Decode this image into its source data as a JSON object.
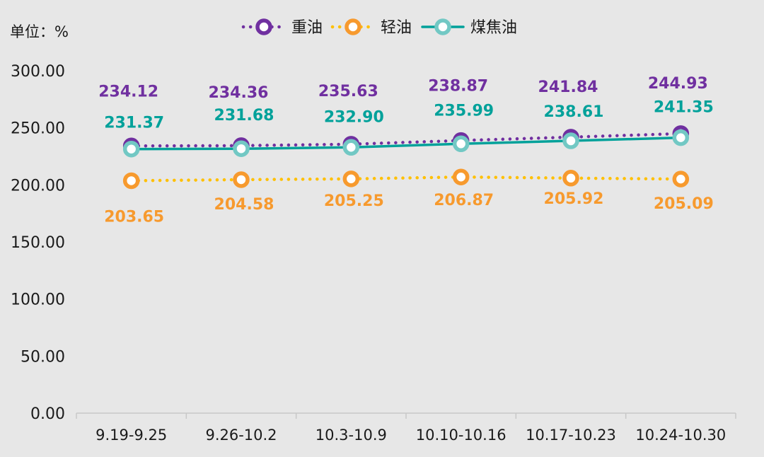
{
  "chart_data": {
    "type": "line",
    "unit_label": "单位：%",
    "categories": [
      "9.19-9.25",
      "9.26-10.2",
      "10.3-10.9",
      "10.10-10.16",
      "10.17-10.23",
      "10.24-10.30"
    ],
    "ylim": [
      0,
      300
    ],
    "yticks": [
      "0.00",
      "50.00",
      "100.00",
      "150.00",
      "200.00",
      "250.00",
      "300.00"
    ],
    "grid": false,
    "legend_position": "top-center",
    "series": [
      {
        "name": "重油",
        "color": "#7030a0",
        "line_style": "dotted",
        "values": [
          234.12,
          234.36,
          235.63,
          238.87,
          241.84,
          244.93
        ],
        "labels": [
          "234.12",
          "234.36",
          "235.63",
          "238.87",
          "241.84",
          "244.93"
        ]
      },
      {
        "name": "轻油",
        "color": "#f79a2e",
        "line_color": "#ffc000",
        "line_style": "dotted",
        "values": [
          203.65,
          204.58,
          205.25,
          206.87,
          205.92,
          205.09
        ],
        "labels": [
          "203.65",
          "204.58",
          "205.25",
          "206.87",
          "205.92",
          "205.09"
        ]
      },
      {
        "name": "煤焦油",
        "color": "#00a19a",
        "marker_color": "#72c8c4",
        "line_style": "solid",
        "values": [
          231.37,
          231.68,
          232.9,
          235.99,
          238.61,
          241.35
        ],
        "labels": [
          "231.37",
          "231.68",
          "232.90",
          "235.99",
          "238.61",
          "241.35"
        ]
      }
    ]
  }
}
